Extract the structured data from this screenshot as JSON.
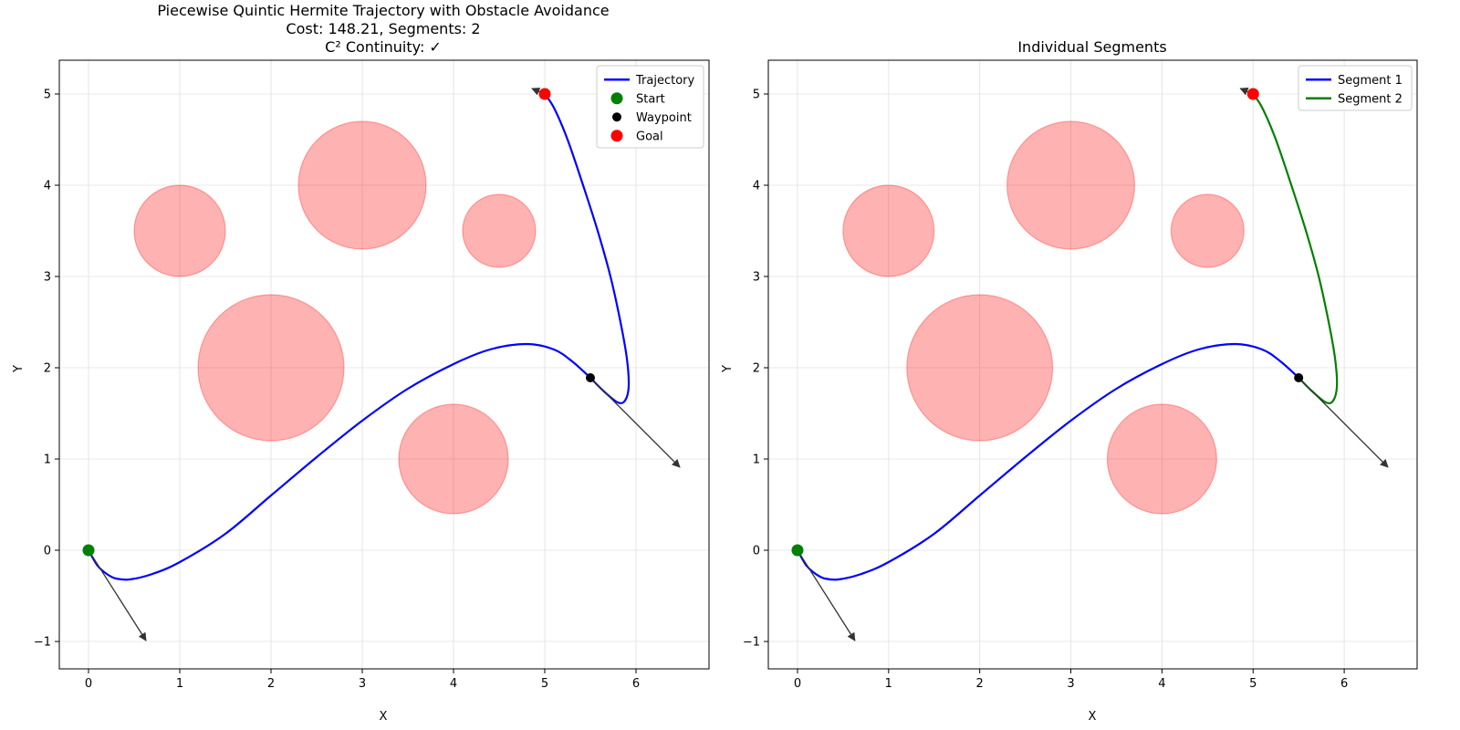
{
  "figure": {
    "charts": [
      {
        "id": "left",
        "title_lines": [
          "Piecewise Quintic Hermite Trajectory with Obstacle Avoidance",
          "Cost: 148.21, Segments: 2",
          "C² Continuity: ✓"
        ],
        "xlabel": "X",
        "ylabel": "Y",
        "legend": [
          {
            "label": "Trajectory",
            "kind": "line",
            "color": "#0000ff"
          },
          {
            "label": "Start",
            "kind": "marker",
            "color": "#008000"
          },
          {
            "label": "Waypoint",
            "kind": "marker",
            "color": "#000000"
          },
          {
            "label": "Goal",
            "kind": "marker",
            "color": "#ff0000"
          }
        ]
      },
      {
        "id": "right",
        "title_lines": [
          "Individual Segments"
        ],
        "xlabel": "X",
        "ylabel": "Y",
        "legend": [
          {
            "label": "Segment 1",
            "kind": "line",
            "color": "#0000ff"
          },
          {
            "label": "Segment 2",
            "kind": "line",
            "color": "#008000"
          }
        ]
      }
    ]
  },
  "chart_data": {
    "type": "line",
    "xlim": [
      -0.32,
      6.8
    ],
    "ylim": [
      -1.3,
      5.37
    ],
    "xticks": [
      0,
      1,
      2,
      3,
      4,
      5,
      6
    ],
    "yticks": [
      -1,
      0,
      1,
      2,
      3,
      4,
      5
    ],
    "grid": true,
    "legend_position": "top-right",
    "obstacles": [
      {
        "cx": 1.0,
        "cy": 3.5,
        "r": 0.5
      },
      {
        "cx": 3.0,
        "cy": 4.0,
        "r": 0.7
      },
      {
        "cx": 4.5,
        "cy": 3.5,
        "r": 0.4
      },
      {
        "cx": 2.0,
        "cy": 2.0,
        "r": 0.8
      },
      {
        "cx": 4.0,
        "cy": 1.0,
        "r": 0.6
      }
    ],
    "segments": [
      {
        "name": "Segment 1",
        "points": [
          [
            0,
            0
          ],
          [
            0.1,
            -0.17
          ],
          [
            0.2,
            -0.26
          ],
          [
            0.3,
            -0.31
          ],
          [
            0.45,
            -0.32
          ],
          [
            0.7,
            -0.26
          ],
          [
            1.0,
            -0.13
          ],
          [
            1.5,
            0.18
          ],
          [
            2.0,
            0.6
          ],
          [
            2.5,
            1.02
          ],
          [
            3.0,
            1.42
          ],
          [
            3.5,
            1.77
          ],
          [
            4.0,
            2.04
          ],
          [
            4.4,
            2.2
          ],
          [
            4.8,
            2.26
          ],
          [
            5.1,
            2.2
          ],
          [
            5.3,
            2.07
          ],
          [
            5.5,
            1.89
          ]
        ]
      },
      {
        "name": "Segment 2",
        "points": [
          [
            5.5,
            1.89
          ],
          [
            5.65,
            1.74
          ],
          [
            5.8,
            1.62
          ],
          [
            5.88,
            1.64
          ],
          [
            5.92,
            1.8
          ],
          [
            5.9,
            2.1
          ],
          [
            5.83,
            2.5
          ],
          [
            5.72,
            3.0
          ],
          [
            5.58,
            3.5
          ],
          [
            5.42,
            4.0
          ],
          [
            5.25,
            4.5
          ],
          [
            5.1,
            4.85
          ],
          [
            5.0,
            5.0
          ]
        ]
      }
    ],
    "start": [
      0,
      0
    ],
    "waypoint": [
      5.5,
      1.89
    ],
    "goal": [
      5.0,
      5.0
    ],
    "velocity_arrows": [
      {
        "from": [
          0,
          0
        ],
        "to": [
          0.63,
          -0.99
        ]
      },
      {
        "from": [
          5.5,
          1.89
        ],
        "to": [
          6.48,
          0.91
        ]
      },
      {
        "from": [
          5.0,
          5.0
        ],
        "to": [
          4.86,
          5.06
        ]
      }
    ]
  }
}
